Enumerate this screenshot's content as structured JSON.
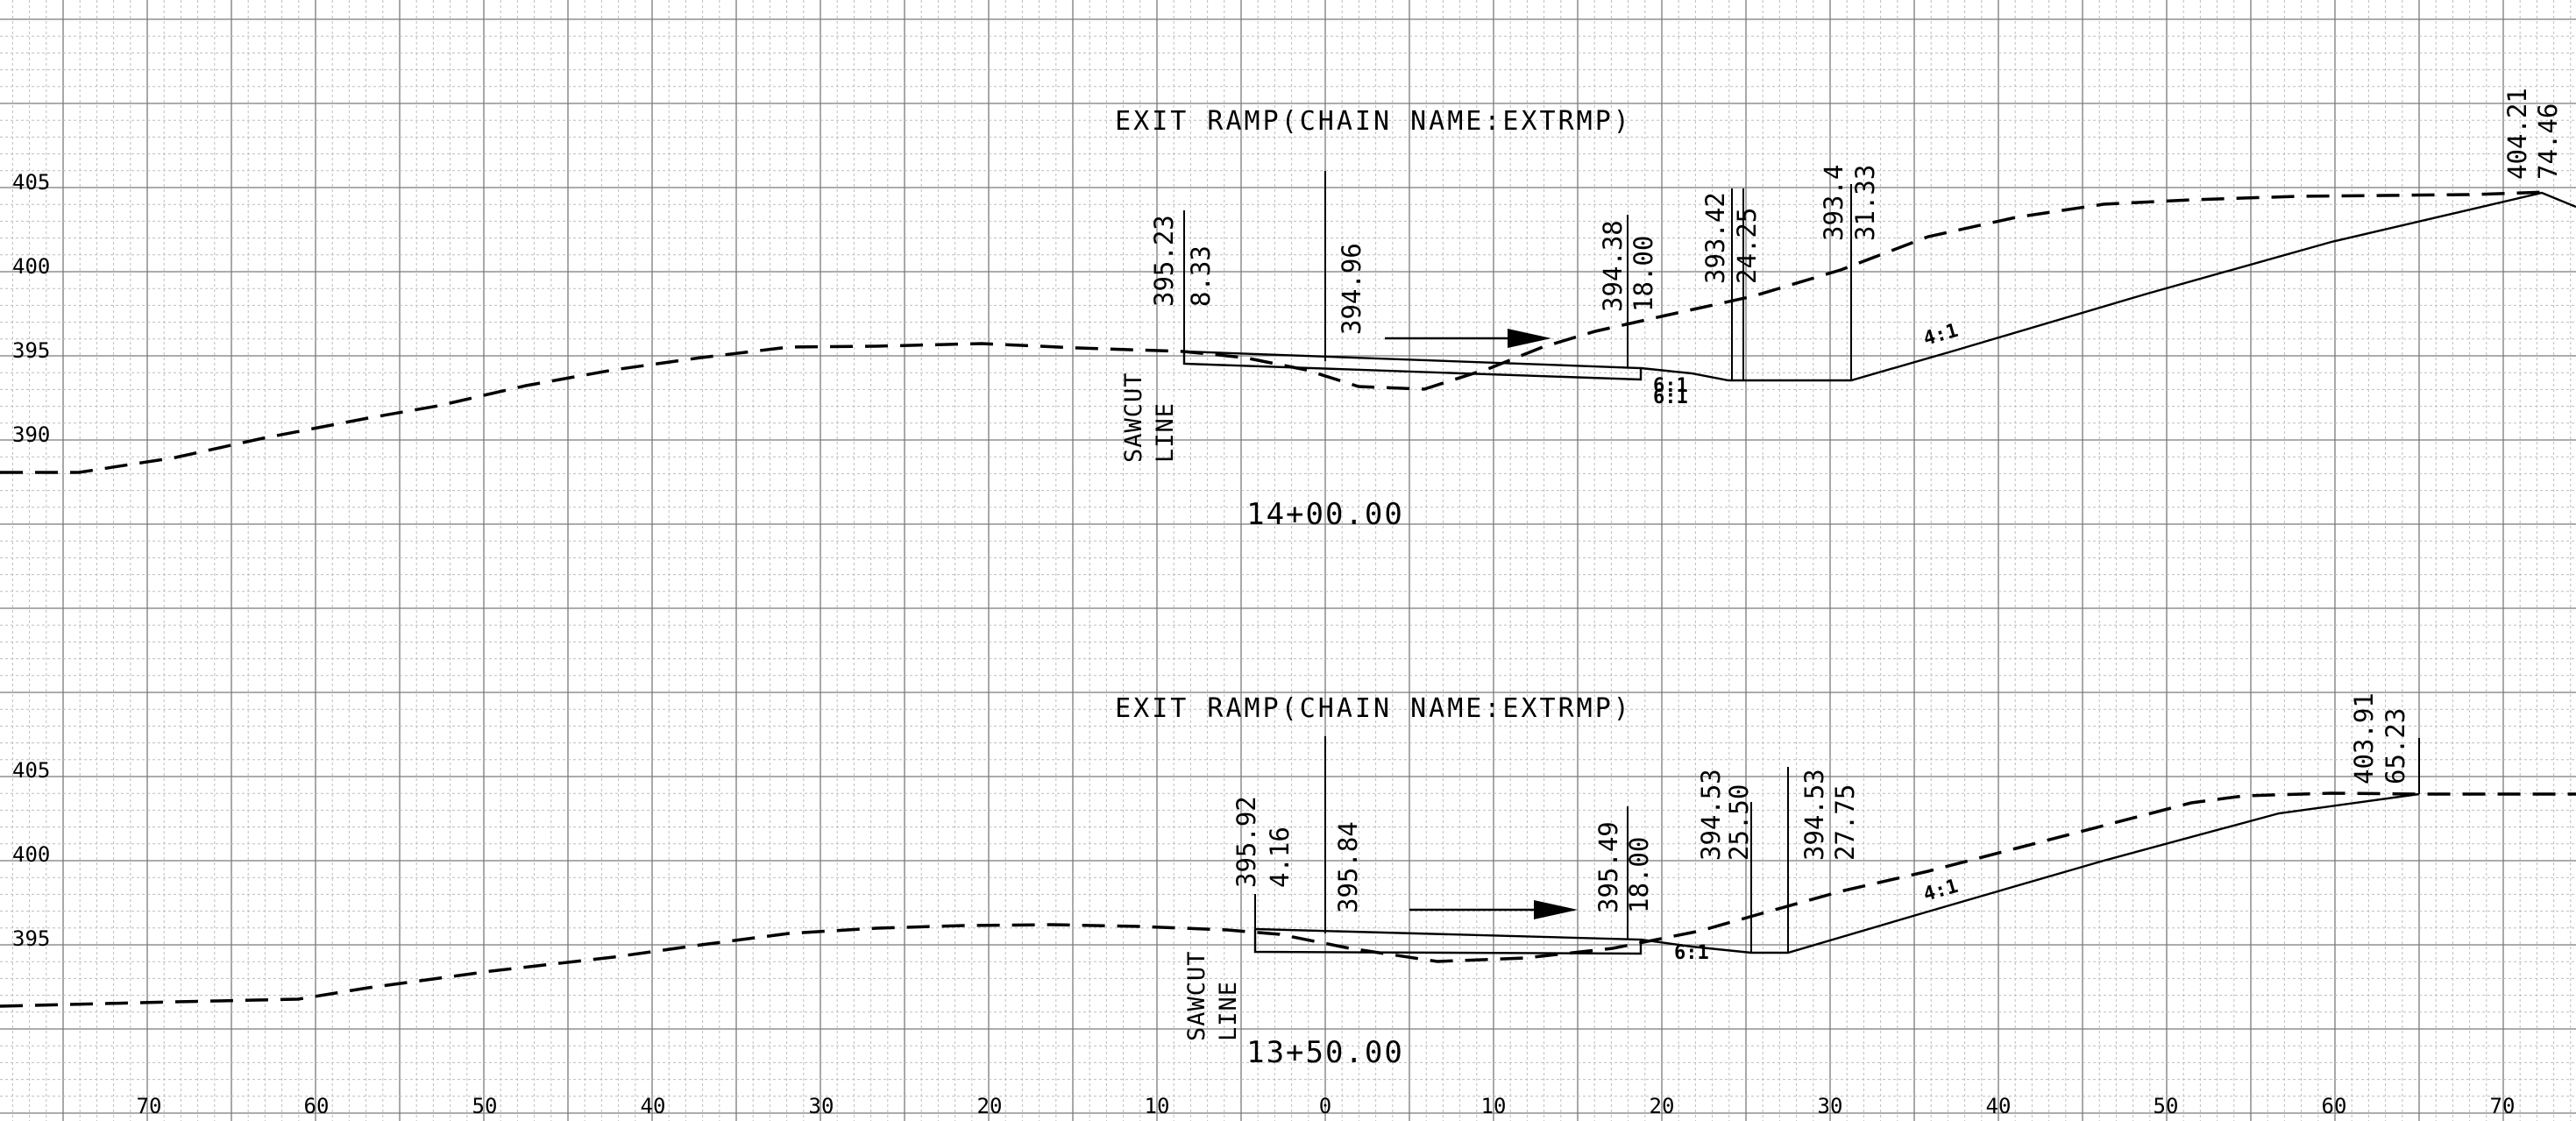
{
  "x_axis_labels": [
    "70",
    "60",
    "50",
    "40",
    "30",
    "20",
    "10",
    "0",
    "10",
    "20",
    "30",
    "40",
    "50",
    "60",
    "70"
  ],
  "sections": [
    {
      "title": "EXIT RAMP(CHAIN NAME:EXTRMP)",
      "station": "14+00.00",
      "elevation_labels": [
        "405",
        "400",
        "395",
        "390"
      ],
      "sawcut": [
        "SAWCUT",
        "LINE"
      ],
      "annotations": [
        {
          "elev": "395.23",
          "offset": "8.33"
        },
        {
          "elev": "394.96",
          "offset": ""
        },
        {
          "elev": "394.38",
          "offset": "18.00"
        },
        {
          "elev": "393.42",
          "offset": "24.25"
        },
        {
          "elev": "393.4",
          "offset": "31.33"
        },
        {
          "elev": "404.21",
          "offset": "74.46"
        }
      ],
      "slopes": [
        "4:1",
        "6:1",
        "6:1"
      ]
    },
    {
      "title": "EXIT RAMP(CHAIN NAME:EXTRMP)",
      "station": "13+50.00",
      "elevation_labels": [
        "405",
        "400",
        "395"
      ],
      "sawcut": [
        "SAWCUT",
        "LINE"
      ],
      "annotations": [
        {
          "elev": "395.92",
          "offset": "4.16"
        },
        {
          "elev": "395.84",
          "offset": ""
        },
        {
          "elev": "395.49",
          "offset": "18.00"
        },
        {
          "elev": "394.53",
          "offset": "25.50"
        },
        {
          "elev": "394.53",
          "offset": "27.75"
        },
        {
          "elev": "403.91",
          "offset": "65.23"
        }
      ],
      "slopes": [
        "4:1",
        "6:1"
      ]
    }
  ]
}
